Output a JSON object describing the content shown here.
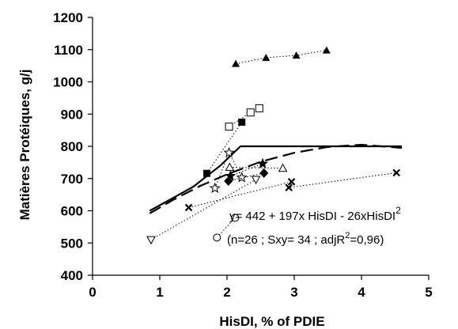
{
  "chart_data": {
    "type": "scatter",
    "title": "",
    "xlabel": "HisDI, % of PDIE",
    "ylabel": "Matières Protéiques, g/j",
    "xlim": [
      0,
      5
    ],
    "ylim": [
      400,
      1200
    ],
    "xticks": [
      "0",
      "1",
      "2",
      "3",
      "4",
      "5"
    ],
    "yticks": [
      "400",
      "500",
      "600",
      "700",
      "800",
      "900",
      "1000",
      "1100",
      "1200"
    ],
    "grid": false,
    "series": [
      {
        "marker": "filled-triangle",
        "x": [
          2.13,
          2.58,
          3.03,
          3.48
        ],
        "y": [
          1056,
          1075,
          1082,
          1098
        ]
      },
      {
        "marker": "open-square",
        "x": [
          2.03,
          2.35,
          2.48
        ],
        "y": [
          861,
          905,
          918
        ]
      },
      {
        "marker": "filled-square",
        "x": [
          1.7,
          2.22
        ],
        "y": [
          716,
          875
        ]
      },
      {
        "marker": "open-star",
        "x": [
          1.82,
          2.03,
          2.22
        ],
        "y": [
          670,
          780,
          703
        ]
      },
      {
        "marker": "filled-star",
        "x": [
          2.05,
          2.53
        ],
        "y": [
          708,
          746
        ]
      },
      {
        "marker": "open-triangle",
        "x": [
          2.04,
          2.83
        ],
        "y": [
          735,
          732
        ]
      },
      {
        "marker": "filled-diamond",
        "x": [
          2.02,
          2.55
        ],
        "y": [
          692,
          717
        ]
      },
      {
        "marker": "open-circle",
        "x": [
          1.85,
          2.12
        ],
        "y": [
          517,
          578
        ]
      },
      {
        "marker": "open-inverted-triangle",
        "x": [
          0.87,
          2.43
        ],
        "y": [
          510,
          697
        ]
      },
      {
        "marker": "cross",
        "x": [
          1.43,
          2.96,
          2.92,
          4.52
        ],
        "y": [
          610,
          690,
          672,
          718
        ]
      }
    ],
    "fit_lines": [
      {
        "style": "solid",
        "x": [
          0.85,
          1.2,
          1.5,
          1.9,
          2.2,
          3.0,
          4.6
        ],
        "y": [
          600,
          640,
          675,
          740,
          800,
          800,
          800
        ]
      },
      {
        "style": "dashed",
        "x": [
          0.85,
          1.2,
          1.6,
          2.0,
          2.5,
          3.0,
          3.5,
          4.0,
          4.6
        ],
        "y": [
          592,
          634,
          677,
          713,
          752,
          780,
          798,
          805,
          795
        ]
      }
    ],
    "annotations": [
      {
        "parts": [
          "y= 442 + 197x HisDI - 26xHisDI",
          "2"
        ]
      },
      {
        "parts": [
          "(n=26 ; Sxy= 34 ; adjR",
          "2",
          "=0,96)"
        ]
      }
    ]
  }
}
